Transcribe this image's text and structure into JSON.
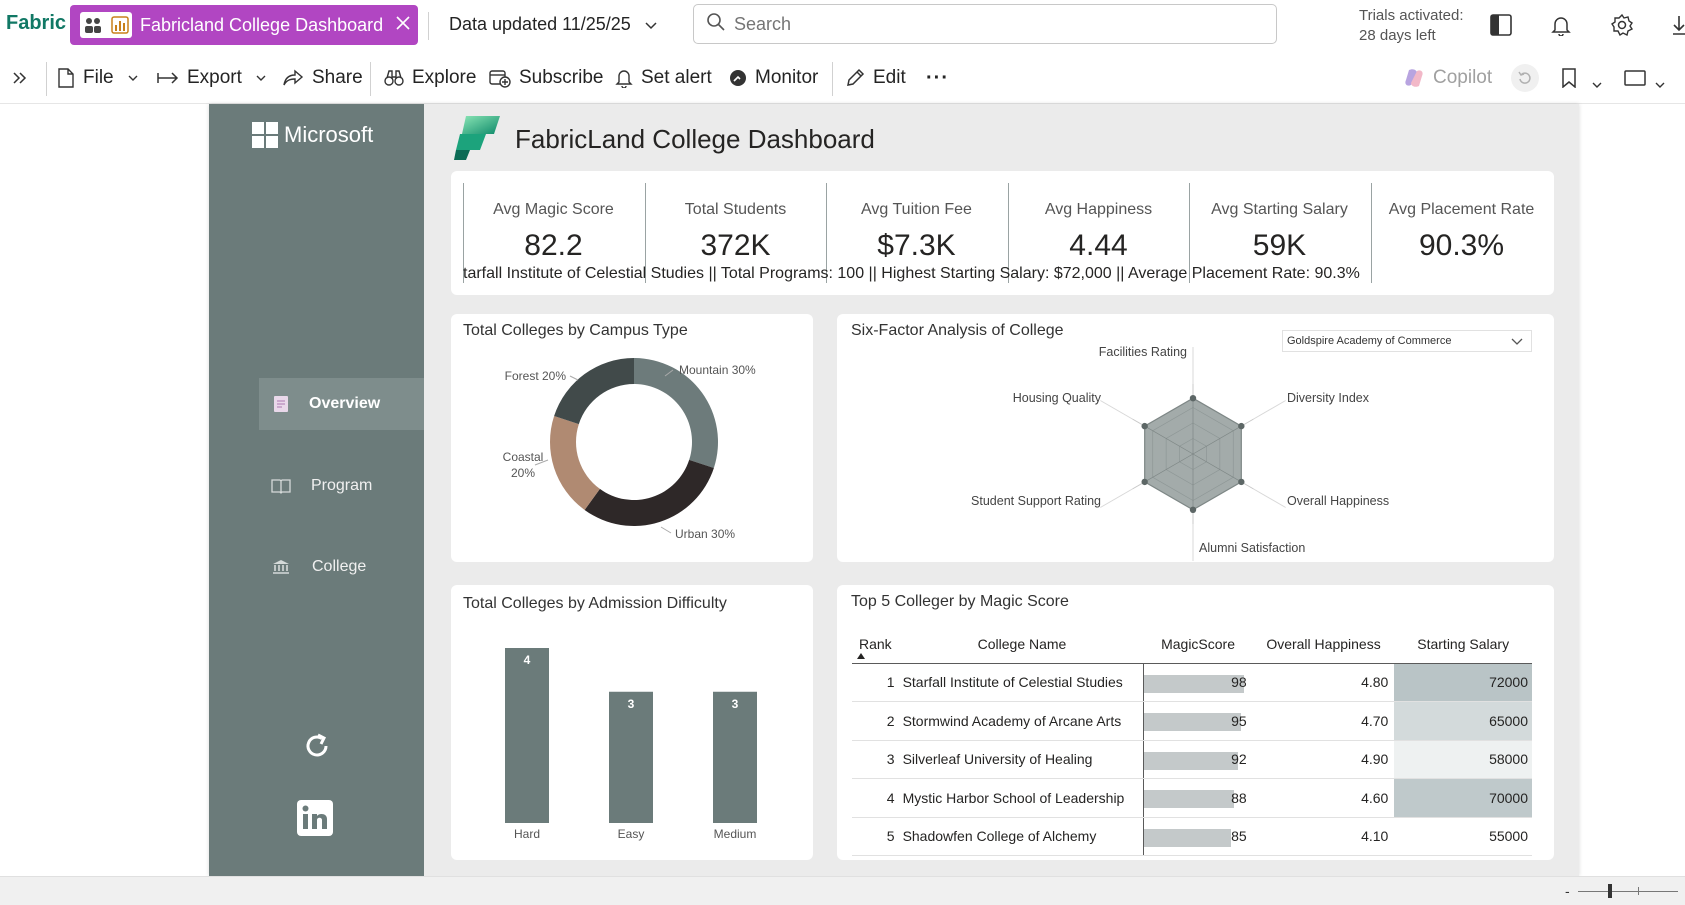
{
  "app": {
    "brand": "Fabric",
    "tab_title": "Fabricland College Dashboard",
    "data_updated": "Data updated 11/25/25",
    "search_placeholder": "Search",
    "trials_line1": "Trials activated:",
    "trials_line2": "28 days left"
  },
  "toolbar": {
    "file": "File",
    "export": "Export",
    "share": "Share",
    "explore": "Explore",
    "subscribe": "Subscribe",
    "set_alert": "Set alert",
    "monitor": "Monitor",
    "edit": "Edit",
    "more": "···",
    "copilot": "Copilot"
  },
  "report": {
    "logo_text": "Microsoft",
    "title": "FabricLand College Dashboard",
    "nav": [
      {
        "label": "Overview",
        "icon": "page-icon",
        "active": true
      },
      {
        "label": "Program",
        "icon": "book-icon",
        "active": false
      },
      {
        "label": "College",
        "icon": "bank-icon",
        "active": false
      }
    ],
    "kpis": [
      {
        "label": "Avg Magic Score",
        "value": "82.2"
      },
      {
        "label": "Total Students",
        "value": "372K"
      },
      {
        "label": "Avg Tuition Fee",
        "value": "$7.3K"
      },
      {
        "label": "Avg Happiness",
        "value": "4.44"
      },
      {
        "label": "Avg Starting Salary",
        "value": "59K"
      },
      {
        "label": "Avg Placement Rate",
        "value": "90.3%"
      }
    ],
    "ticker": "tarfall Institute of Celestial Studies || Total Programs: 100 || Highest Starting Salary: $72,000 || Average Placement Rate: 90.3%",
    "radar_select": "Goldspire Academy of Commerce",
    "colors": {
      "nav_bg": "#6b7b7a",
      "active_nav": "#7e8d8c",
      "accent_tab": "#b146c2",
      "brand": "#117865"
    }
  },
  "chart_data": [
    {
      "type": "pie",
      "title": "Total Colleges by Campus Type",
      "slices": [
        {
          "label": "Mountain",
          "value": 30,
          "display": "Mountain 30%",
          "color": "#6d7b7b"
        },
        {
          "label": "Urban",
          "value": 30,
          "display": "Urban 30%",
          "color": "#2e2828"
        },
        {
          "label": "Coastal",
          "value": 20,
          "display_lines": [
            "Coastal",
            "20%"
          ],
          "color": "#b08a72"
        },
        {
          "label": "Forest",
          "value": 20,
          "display": "Forest 20%",
          "color": "#414a4a"
        }
      ]
    },
    {
      "type": "radar",
      "title": "Six-Factor Analysis of College",
      "axes": [
        "Facilities Rating",
        "Diversity Index",
        "Overall Happiness",
        "Alumni Satisfaction",
        "Student Support Rating",
        "Housing Quality"
      ],
      "values": [
        4.5,
        4.5,
        4.5,
        4.5,
        4.5,
        4.5
      ],
      "range": [
        0,
        5
      ]
    },
    {
      "type": "bar",
      "title": "Total Colleges by Admission Difficulty",
      "categories": [
        "Hard",
        "Easy",
        "Medium"
      ],
      "values": [
        4,
        3,
        3
      ],
      "ylim": [
        0,
        4
      ],
      "color": "#6b7b7a"
    },
    {
      "type": "table",
      "title": "Top 5 Colleger by Magic Score",
      "columns": [
        "Rank",
        "College Name",
        "MagicScore",
        "Overall Happiness",
        "Starting Salary"
      ],
      "rows": [
        {
          "rank": "1",
          "name": "Starfall Institute of Celestial Studies",
          "magic": 98,
          "happiness": "4.80",
          "salary": "72000",
          "salary_bg": "#b9c4c6"
        },
        {
          "rank": "2",
          "name": "Stormwind Academy of Arcane Arts",
          "magic": 95,
          "happiness": "4.70",
          "salary": "65000",
          "salary_bg": "#d3dadb"
        },
        {
          "rank": "3",
          "name": "Silverleaf University of Healing",
          "magic": 92,
          "happiness": "4.90",
          "salary": "58000",
          "salary_bg": "#eef1f1"
        },
        {
          "rank": "4",
          "name": "Mystic Harbor School of Leadership",
          "magic": 88,
          "happiness": "4.60",
          "salary": "70000",
          "salary_bg": "#bfc9cb"
        },
        {
          "rank": "5",
          "name": "Shadowfen College of Alchemy",
          "magic": 85,
          "happiness": "4.10",
          "salary": "55000",
          "salary_bg": "#ffffff"
        }
      ],
      "magic_max": 98
    }
  ]
}
